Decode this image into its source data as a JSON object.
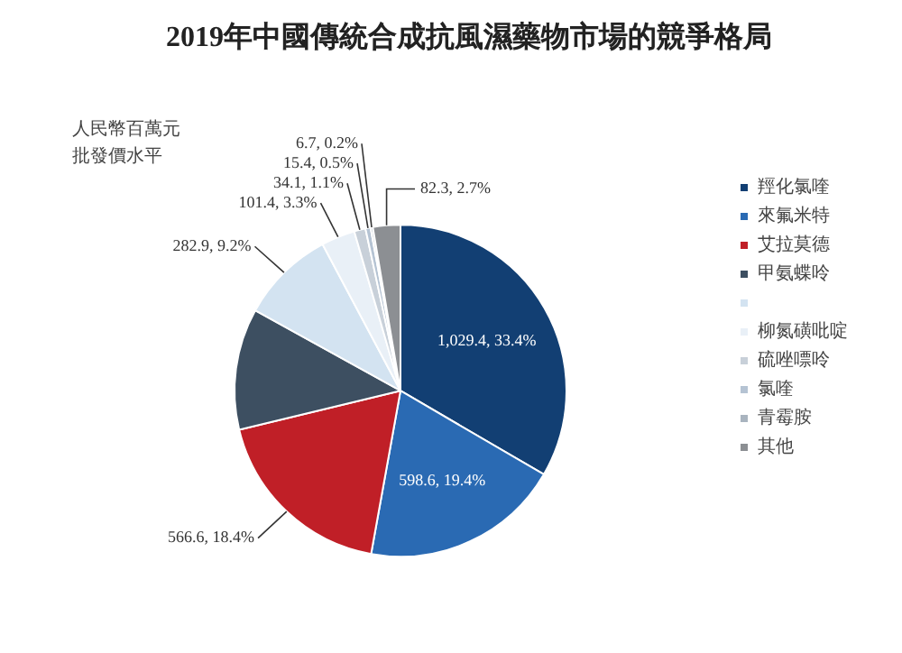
{
  "chart_data": {
    "type": "pie",
    "title": "2019年中國傳統合成抗風濕藥物市場的競爭格局",
    "categories": [
      "羥化氯喹",
      "來氟米特",
      "艾拉莫德",
      "甲氨蝶呤",
      null,
      "柳氮磺吡啶",
      "硫唑嘌呤",
      "氯喹",
      "青霉胺",
      "其他"
    ],
    "values": [
      1029.4,
      598.6,
      566.6,
      363.9,
      282.9,
      101.4,
      34.1,
      15.4,
      6.7,
      82.3
    ],
    "colors": [
      "#123f73",
      "#2a6ab3",
      "#c01f27",
      "#3d4f61",
      "#d3e3f1",
      "#e9f0f7",
      "#c8d0d9",
      "#b5c3d3",
      "#a9b4bf",
      "#8c8f93"
    ],
    "value_labels": [
      "1,029.4, 33.4%",
      "598.6, 19.4%",
      "566.6, 18.4%",
      null,
      "282.9, 9.2%",
      "101.4, 3.3%",
      "34.1, 1.1%",
      "15.4, 0.5%",
      "6.7, 0.2%",
      "82.3, 2.7%"
    ],
    "legend": "right",
    "annotations": [
      "人民幣百萬元",
      "批發價水平"
    ]
  }
}
